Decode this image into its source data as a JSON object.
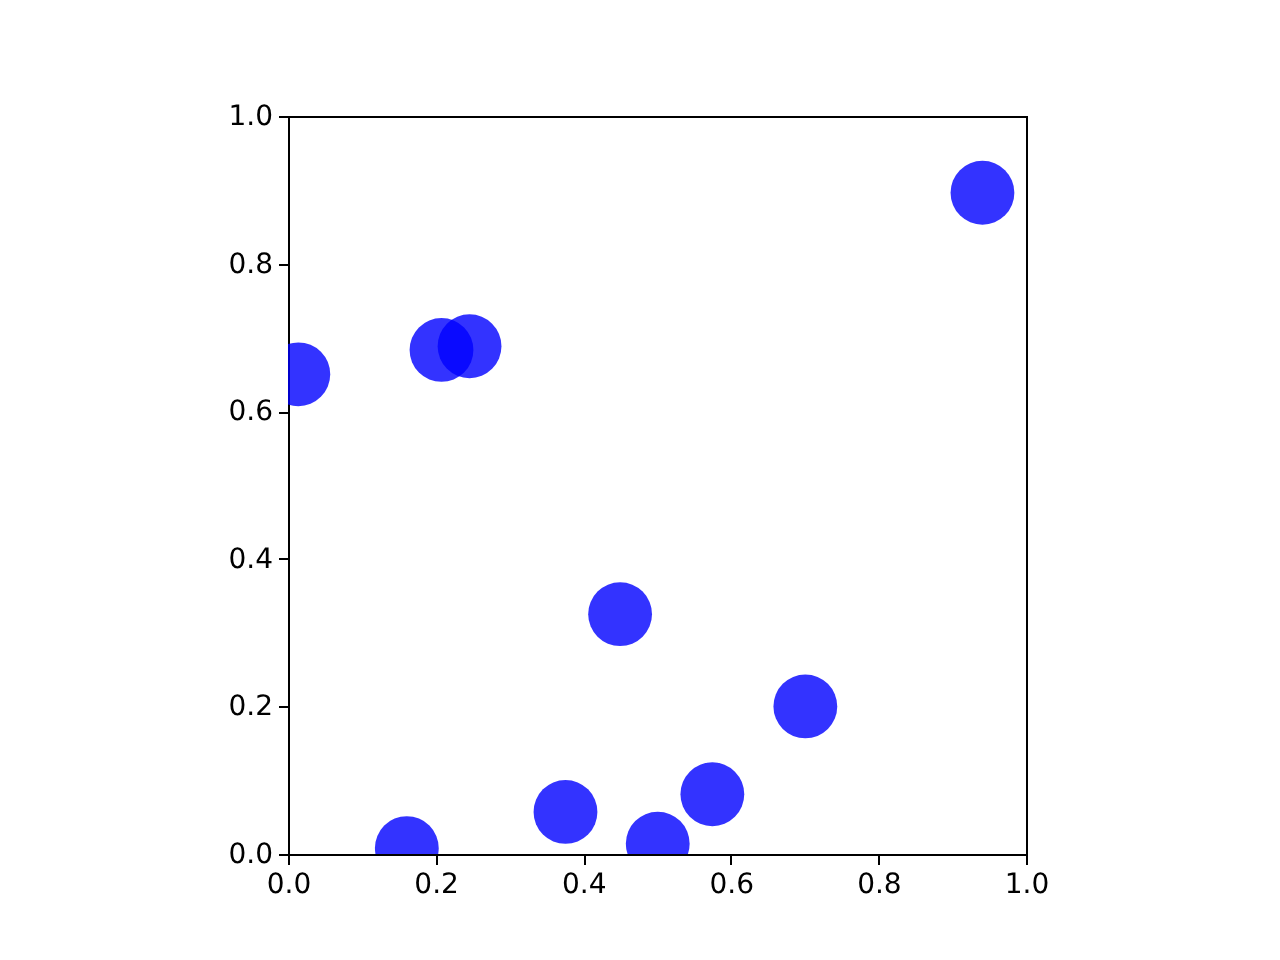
{
  "chart_data": {
    "type": "scatter",
    "x": [
      0.014,
      0.208,
      0.246,
      0.941,
      0.45,
      0.701,
      0.575,
      0.376,
      0.161,
      0.501
    ],
    "values": [
      0.65,
      0.683,
      0.688,
      0.896,
      0.325,
      0.2,
      0.081,
      0.057,
      0.008,
      0.014
    ],
    "color": "#0000ff",
    "marker": "circle",
    "grid": false,
    "xlim": [
      0,
      1
    ],
    "ylim": [
      0,
      1
    ],
    "xticks": [
      {
        "value": 0,
        "label": "0.0"
      },
      {
        "value": 0.2,
        "label": "0.2"
      },
      {
        "value": 0.4,
        "label": "0.4"
      },
      {
        "value": 0.6,
        "label": "0.6"
      },
      {
        "value": 0.8,
        "label": "0.8"
      },
      {
        "value": 1,
        "label": "1.0"
      }
    ],
    "yticks": [
      {
        "value": 0,
        "label": "0.0"
      },
      {
        "value": 0.2,
        "label": "0.2"
      },
      {
        "value": 0.4,
        "label": "0.4"
      },
      {
        "value": 0.6,
        "label": "0.6"
      },
      {
        "value": 0.8,
        "label": "0.8"
      },
      {
        "value": 1,
        "label": "1.0"
      }
    ]
  }
}
